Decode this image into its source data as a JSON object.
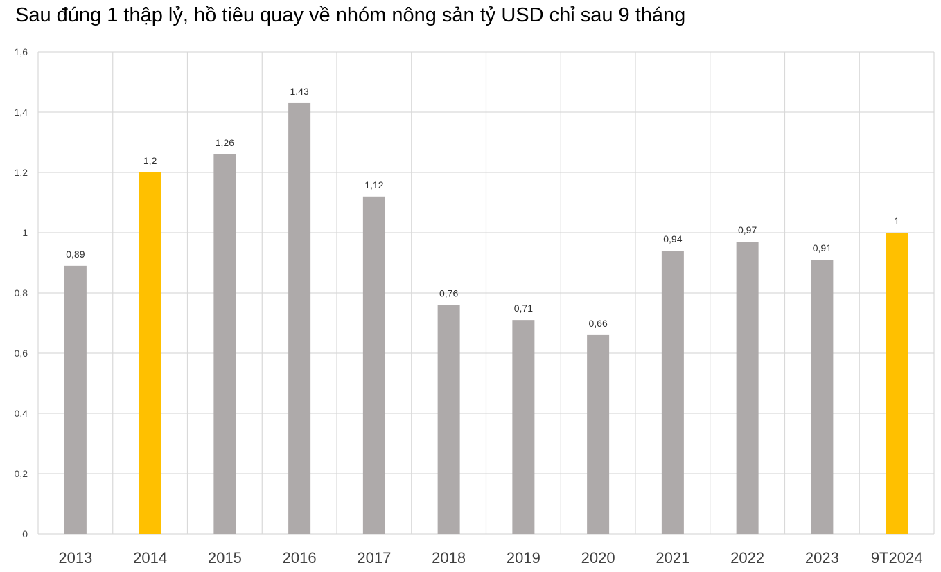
{
  "title": "Sau đúng 1 thập lỷ, hồ tiêu quay về nhóm nông sản tỷ USD chỉ sau 9 tháng",
  "chart_data": {
    "type": "bar",
    "categories": [
      "2013",
      "2014",
      "2015",
      "2016",
      "2017",
      "2018",
      "2019",
      "2020",
      "2021",
      "2022",
      "2023",
      "9T2024"
    ],
    "values": [
      0.89,
      1.2,
      1.26,
      1.43,
      1.12,
      0.76,
      0.71,
      0.66,
      0.94,
      0.97,
      0.91,
      1
    ],
    "value_labels": [
      "0,89",
      "1,2",
      "1,26",
      "1,43",
      "1,12",
      "0,76",
      "0,71",
      "0,66",
      "0,94",
      "0,97",
      "0,91",
      "1"
    ],
    "highlighted": [
      "2014",
      "9T2024"
    ],
    "ylim": [
      0,
      1.6
    ],
    "yticks": [
      0,
      0.2,
      0.4,
      0.6,
      0.8,
      1,
      1.2,
      1.4,
      1.6
    ],
    "ytick_labels": [
      "0",
      "0,2",
      "0,4",
      "0,6",
      "0,8",
      "1",
      "1,2",
      "1,4",
      "1,6"
    ],
    "grid": true,
    "legend": "none",
    "colors": {
      "default_bar": "#aeaaaa",
      "highlight_bar": "#ffc000",
      "grid": "#d9d9d9"
    }
  }
}
